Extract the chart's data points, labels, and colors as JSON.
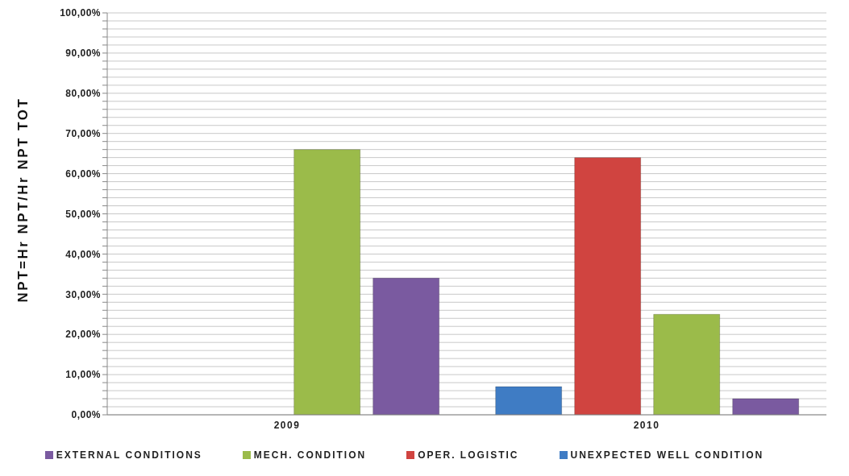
{
  "chart_data": {
    "type": "bar",
    "ylabel": "NPT=Hr NPT/Hr NPT TOT",
    "categories": [
      "2009",
      "2010"
    ],
    "series": [
      {
        "name": "UNEXPECTED WELL CONDITION",
        "color": "#3f7cc4",
        "values": [
          0,
          7
        ]
      },
      {
        "name": "OPER. LOGISTIC",
        "color": "#d04440",
        "values": [
          0,
          64
        ]
      },
      {
        "name": "MECH. CONDITION",
        "color": "#9bbb4a",
        "values": [
          66,
          25
        ]
      },
      {
        "name": "EXTERNAL CONDITIONS",
        "color": "#7a5aa0",
        "values": [
          34,
          4
        ]
      }
    ],
    "ylim": [
      0,
      100
    ],
    "yticks": [
      {
        "value": 0,
        "label": "0,00%"
      },
      {
        "value": 2,
        "label": null
      },
      {
        "value": 4,
        "label": null
      },
      {
        "value": 6,
        "label": null
      },
      {
        "value": 8,
        "label": null
      },
      {
        "value": 10,
        "label": "10,00%"
      },
      {
        "value": 12,
        "label": null
      },
      {
        "value": 14,
        "label": null
      },
      {
        "value": 16,
        "label": null
      },
      {
        "value": 18,
        "label": null
      },
      {
        "value": 20,
        "label": "20,00%"
      },
      {
        "value": 22,
        "label": null
      },
      {
        "value": 24,
        "label": null
      },
      {
        "value": 26,
        "label": null
      },
      {
        "value": 28,
        "label": null
      },
      {
        "value": 30,
        "label": "30,00%"
      },
      {
        "value": 32,
        "label": null
      },
      {
        "value": 34,
        "label": null
      },
      {
        "value": 36,
        "label": null
      },
      {
        "value": 38,
        "label": null
      },
      {
        "value": 40,
        "label": "40,00%"
      },
      {
        "value": 42,
        "label": null
      },
      {
        "value": 44,
        "label": null
      },
      {
        "value": 46,
        "label": null
      },
      {
        "value": 48,
        "label": null
      },
      {
        "value": 50,
        "label": "50,00%"
      },
      {
        "value": 52,
        "label": null
      },
      {
        "value": 54,
        "label": null
      },
      {
        "value": 56,
        "label": null
      },
      {
        "value": 58,
        "label": null
      },
      {
        "value": 60,
        "label": "60,00%"
      },
      {
        "value": 62,
        "label": null
      },
      {
        "value": 64,
        "label": null
      },
      {
        "value": 66,
        "label": null
      },
      {
        "value": 68,
        "label": null
      },
      {
        "value": 70,
        "label": "70,00%"
      },
      {
        "value": 72,
        "label": null
      },
      {
        "value": 74,
        "label": null
      },
      {
        "value": 76,
        "label": null
      },
      {
        "value": 78,
        "label": null
      },
      {
        "value": 80,
        "label": "80,00%"
      },
      {
        "value": 82,
        "label": null
      },
      {
        "value": 84,
        "label": null
      },
      {
        "value": 86,
        "label": null
      },
      {
        "value": 88,
        "label": null
      },
      {
        "value": 90,
        "label": "90,00%"
      },
      {
        "value": 92,
        "label": null
      },
      {
        "value": 94,
        "label": null
      },
      {
        "value": 96,
        "label": null
      },
      {
        "value": 98,
        "label": null
      },
      {
        "value": 100,
        "label": "100,00%"
      }
    ],
    "grid": "y",
    "legend": "bottom"
  }
}
